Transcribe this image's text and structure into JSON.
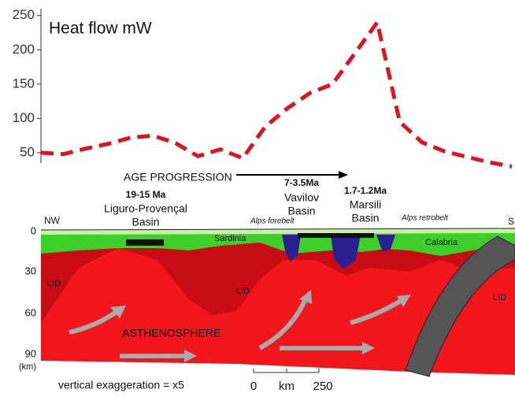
{
  "chart_data": {
    "type": "line",
    "title": "Heat flow mW",
    "categories": [
      null,
      null,
      null,
      null,
      null,
      null,
      null,
      null,
      null,
      null,
      null,
      null,
      null,
      null,
      null,
      null,
      null,
      null,
      null,
      null,
      null,
      null
    ],
    "values": [
      50,
      48,
      56,
      63,
      72,
      75,
      64,
      45,
      55,
      42,
      88,
      115,
      137,
      150,
      195,
      240,
      95,
      65,
      52,
      44,
      36,
      30
    ],
    "color": "#e0141e",
    "line_style": "dashed",
    "ylim": [
      35,
      260
    ],
    "yticks": [
      50,
      100,
      150,
      200,
      250
    ]
  },
  "section": {
    "age_label": "AGE PROGRESSION",
    "basins": [
      [
        "19-15 Ma",
        "Liguro-Provençal",
        "Basin"
      ],
      [
        "7-3.5Ma",
        "Vavilov",
        "Basin"
      ],
      [
        "1.7-1.2Ma",
        "Marsili",
        "Basin"
      ]
    ],
    "ends": [
      "NW",
      "S"
    ],
    "features": [
      "Alps forebelt",
      "Alps retrobelt",
      "Sardinia",
      "Calabria"
    ],
    "lid": [
      "LID",
      "LID",
      "LID"
    ],
    "asthenosphere": "ASTHENOSPHERE",
    "depths": [
      0,
      30,
      60,
      90
    ],
    "depth_unit": "(km)",
    "exaggeration": "vertical exaggeration = x5",
    "scale": [
      "0",
      "km",
      "250"
    ]
  }
}
